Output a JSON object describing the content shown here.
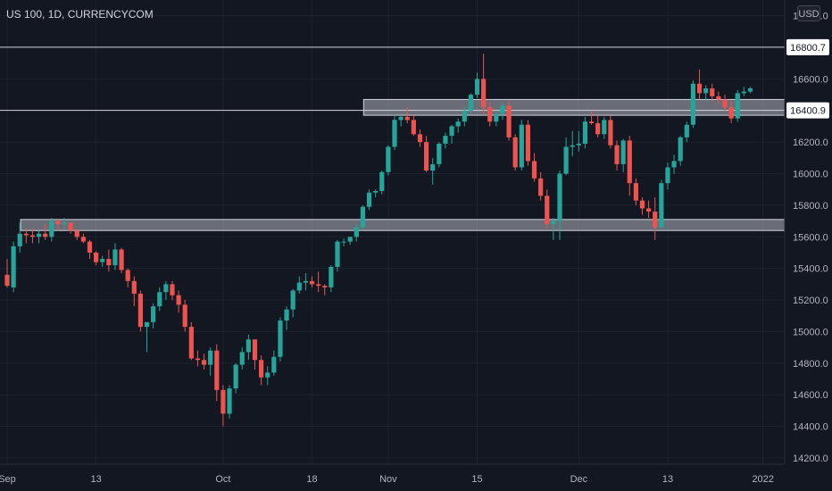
{
  "chart_data": {
    "type": "candlestick",
    "title": "US 100, 1D, CURRENCYCOM",
    "currency": "USD",
    "y_ticks": [
      14200,
      14400,
      14600,
      14800,
      15000,
      15200,
      15400,
      15600,
      15800,
      16000,
      16200,
      16400,
      16600,
      16800,
      17000
    ],
    "y_tick_labels": [
      "14200.0",
      "14400.0",
      "14600.0",
      "14800.0",
      "15000.0",
      "15200.0",
      "15400.0",
      "15600.0",
      "15800.0",
      "16000.0",
      "16200.0",
      "16400.0",
      "16600.0",
      "16800.0",
      "17000.0"
    ],
    "ylim": [
      14160,
      17100
    ],
    "x_ticks": [
      {
        "label": "Sep",
        "index": 0
      },
      {
        "label": "13",
        "index": 14
      },
      {
        "label": "Oct",
        "index": 34
      },
      {
        "label": "18",
        "index": 48
      },
      {
        "label": "Nov",
        "index": 60
      },
      {
        "label": "15",
        "index": 74
      },
      {
        "label": "Dec",
        "index": 90
      },
      {
        "label": "13",
        "index": 104
      },
      {
        "label": "2022",
        "index": 119
      }
    ],
    "horizontal_lines": [
      {
        "value": 16800.7,
        "label": "16800.7",
        "color": "#d1d4dc"
      },
      {
        "value": 16400.9,
        "label": "16400.9",
        "color": "#d1d4dc"
      }
    ],
    "zones": [
      {
        "from_index": 55,
        "to_index": 125,
        "low": 16370,
        "high": 16470,
        "color": "#b2b5be"
      },
      {
        "from_index": 1,
        "to_index": 125,
        "low": 15640,
        "high": 15710,
        "color": "#b2b5be"
      }
    ],
    "projection_arrow": {
      "from_index": 123.5,
      "from_value": 16420,
      "to_index": 124.5,
      "to_value": 16820
    },
    "up_color": "#26a69a",
    "down_color": "#ef5350",
    "candles": [
      [
        15360,
        15460,
        15280,
        15290
      ],
      [
        15280,
        15570,
        15250,
        15540
      ],
      [
        15540,
        15690,
        15500,
        15620
      ],
      [
        15620,
        15650,
        15560,
        15610
      ],
      [
        15610,
        15650,
        15560,
        15600
      ],
      [
        15600,
        15640,
        15560,
        15620
      ],
      [
        15620,
        15680,
        15580,
        15600
      ],
      [
        15600,
        15720,
        15570,
        15700
      ],
      [
        15700,
        15710,
        15640,
        15680
      ],
      [
        15680,
        15720,
        15650,
        15690
      ],
      [
        15690,
        15690,
        15620,
        15640
      ],
      [
        15640,
        15650,
        15580,
        15600
      ],
      [
        15600,
        15620,
        15560,
        15570
      ],
      [
        15570,
        15580,
        15460,
        15500
      ],
      [
        15500,
        15510,
        15420,
        15440
      ],
      [
        15440,
        15480,
        15410,
        15460
      ],
      [
        15460,
        15520,
        15380,
        15420
      ],
      [
        15420,
        15560,
        15390,
        15520
      ],
      [
        15520,
        15530,
        15370,
        15390
      ],
      [
        15390,
        15400,
        15280,
        15320
      ],
      [
        15320,
        15350,
        15160,
        15240
      ],
      [
        15240,
        15260,
        15000,
        15030
      ],
      [
        15030,
        15050,
        14870,
        15060
      ],
      [
        15060,
        15180,
        15020,
        15160
      ],
      [
        15160,
        15280,
        15130,
        15250
      ],
      [
        15250,
        15320,
        15200,
        15300
      ],
      [
        15300,
        15320,
        15200,
        15230
      ],
      [
        15230,
        15260,
        15120,
        15170
      ],
      [
        15170,
        15200,
        15000,
        15030
      ],
      [
        15030,
        15060,
        14820,
        14830
      ],
      [
        14830,
        14880,
        14780,
        14820
      ],
      [
        14820,
        14860,
        14760,
        14790
      ],
      [
        14790,
        14900,
        14720,
        14880
      ],
      [
        14880,
        14920,
        14560,
        14630
      ],
      [
        14630,
        14660,
        14400,
        14480
      ],
      [
        14480,
        14660,
        14450,
        14640
      ],
      [
        14640,
        14800,
        14610,
        14790
      ],
      [
        14790,
        14900,
        14760,
        14870
      ],
      [
        14870,
        14980,
        14820,
        14950
      ],
      [
        14950,
        14950,
        14760,
        14820
      ],
      [
        14820,
        14850,
        14660,
        14710
      ],
      [
        14710,
        14780,
        14660,
        14740
      ],
      [
        14740,
        14880,
        14720,
        14840
      ],
      [
        14840,
        15090,
        14810,
        15070
      ],
      [
        15070,
        15160,
        15010,
        15140
      ],
      [
        15140,
        15270,
        15090,
        15260
      ],
      [
        15260,
        15350,
        15240,
        15310
      ],
      [
        15310,
        15370,
        15260,
        15320
      ],
      [
        15320,
        15350,
        15280,
        15300
      ],
      [
        15300,
        15380,
        15250,
        15290
      ],
      [
        15290,
        15300,
        15230,
        15280
      ],
      [
        15280,
        15420,
        15250,
        15410
      ],
      [
        15410,
        15580,
        15380,
        15570
      ],
      [
        15570,
        15590,
        15540,
        15570
      ],
      [
        15570,
        15600,
        15550,
        15600
      ],
      [
        15600,
        15680,
        15570,
        15660
      ],
      [
        15660,
        15800,
        15640,
        15790
      ],
      [
        15790,
        15900,
        15770,
        15880
      ],
      [
        15880,
        15900,
        15850,
        15890
      ],
      [
        15890,
        16020,
        15870,
        16010
      ],
      [
        16010,
        16180,
        15990,
        16170
      ],
      [
        16170,
        16380,
        16150,
        16340
      ],
      [
        16340,
        16370,
        16300,
        16360
      ],
      [
        16360,
        16420,
        16320,
        16340
      ],
      [
        16340,
        16370,
        16240,
        16250
      ],
      [
        16250,
        16280,
        16170,
        16200
      ],
      [
        16200,
        16240,
        16010,
        16020
      ],
      [
        16020,
        16100,
        15930,
        16060
      ],
      [
        16060,
        16200,
        16040,
        16190
      ],
      [
        16190,
        16260,
        16160,
        16240
      ],
      [
        16240,
        16310,
        16190,
        16300
      ],
      [
        16300,
        16350,
        16260,
        16330
      ],
      [
        16330,
        16420,
        16300,
        16400
      ],
      [
        16400,
        16510,
        16380,
        16500
      ],
      [
        16500,
        16640,
        16480,
        16600
      ],
      [
        16600,
        16760,
        16380,
        16420
      ],
      [
        16420,
        16450,
        16300,
        16330
      ],
      [
        16330,
        16400,
        16300,
        16380
      ],
      [
        16380,
        16450,
        16340,
        16430
      ],
      [
        16430,
        16460,
        16210,
        16230
      ],
      [
        16230,
        16250,
        16020,
        16040
      ],
      [
        16040,
        16340,
        16020,
        16310
      ],
      [
        16310,
        16340,
        16050,
        16080
      ],
      [
        16080,
        16130,
        15950,
        15970
      ],
      [
        15970,
        16010,
        15830,
        15860
      ],
      [
        15860,
        15900,
        15650,
        15680
      ],
      [
        15680,
        15720,
        15580,
        15700
      ],
      [
        15700,
        16020,
        15580,
        16000
      ],
      [
        16000,
        16230,
        15990,
        16170
      ],
      [
        16170,
        16270,
        16110,
        16180
      ],
      [
        16180,
        16270,
        16140,
        16190
      ],
      [
        16190,
        16360,
        16160,
        16330
      ],
      [
        16330,
        16400,
        16310,
        16320
      ],
      [
        16320,
        16370,
        16230,
        16250
      ],
      [
        16250,
        16360,
        16220,
        16340
      ],
      [
        16340,
        16370,
        16160,
        16180
      ],
      [
        16180,
        16210,
        16020,
        16060
      ],
      [
        16060,
        16220,
        16010,
        16210
      ],
      [
        16210,
        16240,
        15860,
        15940
      ],
      [
        15940,
        15970,
        15800,
        15830
      ],
      [
        15830,
        15850,
        15740,
        15780
      ],
      [
        15780,
        15830,
        15720,
        15760
      ],
      [
        15760,
        15850,
        15580,
        15660
      ],
      [
        15660,
        15960,
        15650,
        15940
      ],
      [
        15940,
        16070,
        15900,
        16040
      ],
      [
        16040,
        16120,
        16000,
        16080
      ],
      [
        16080,
        16240,
        16050,
        16230
      ],
      [
        16230,
        16330,
        16200,
        16310
      ],
      [
        16310,
        16590,
        16290,
        16570
      ],
      [
        16570,
        16660,
        16470,
        16510
      ],
      [
        16510,
        16560,
        16460,
        16540
      ],
      [
        16540,
        16570,
        16460,
        16490
      ],
      [
        16490,
        16520,
        16440,
        16470
      ],
      [
        16470,
        16500,
        16400,
        16420
      ],
      [
        16420,
        16460,
        16320,
        16350
      ],
      [
        16350,
        16530,
        16330,
        16510
      ],
      [
        16510,
        16550,
        16490,
        16520
      ],
      [
        16520,
        16550,
        16510,
        16540
      ]
    ]
  }
}
